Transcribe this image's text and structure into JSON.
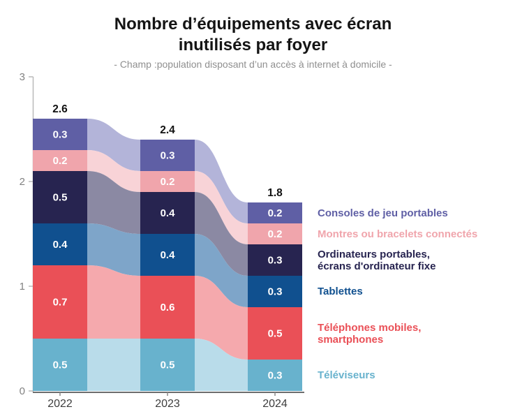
{
  "header": {
    "title_line1": "Nombre d’équipements avec écran",
    "title_line2": "inutilisés par foyer",
    "subtitle": "- Champ :population disposant d’un accès à internet à domicile -"
  },
  "chart_data": {
    "type": "area",
    "variant": "stacked-bars-with-flows",
    "title": "Nombre d’équipements avec écran inutilisés par foyer",
    "subtitle": "- Champ :population disposant d’un accès à internet à domicile -",
    "xlabel": "",
    "ylabel": "",
    "ylim": [
      0,
      3
    ],
    "yticks": [
      0,
      1,
      2,
      3
    ],
    "grid": false,
    "legend_position": "right",
    "x": [
      "2022",
      "2023",
      "2024"
    ],
    "totals": [
      2.6,
      2.4,
      1.8
    ],
    "series": [
      {
        "id": "consoles",
        "name": "Consoles de jeu portables",
        "values": [
          0.3,
          0.3,
          0.2
        ],
        "color": "#5f5fa5",
        "flow_color": "#b3b4d9"
      },
      {
        "id": "montres",
        "name": "Montres ou bracelets connectés",
        "values": [
          0.2,
          0.2,
          0.2
        ],
        "color": "#f0a5ac",
        "flow_color": "#f8d3d7"
      },
      {
        "id": "ordinateurs",
        "name": "Ordinateurs portables, écrans d'ordinateur fixe",
        "legend_lines": [
          "Ordinateurs portables,",
          "écrans d'ordinateur fixe"
        ],
        "values": [
          0.5,
          0.4,
          0.3
        ],
        "color": "#272450",
        "flow_color": "#8b89a3"
      },
      {
        "id": "tablettes",
        "name": "Tablettes",
        "values": [
          0.4,
          0.4,
          0.3
        ],
        "color": "#10508f",
        "flow_color": "#7ea5c9"
      },
      {
        "id": "telephones",
        "name": "Téléphones mobiles, smartphones",
        "legend_lines": [
          "Téléphones mobiles,",
          "smartphones"
        ],
        "values": [
          0.7,
          0.6,
          0.5
        ],
        "color": "#ea5057",
        "flow_color": "#f5a9ad"
      },
      {
        "id": "televiseurs",
        "name": "Téléviseurs",
        "values": [
          0.5,
          0.5,
          0.3
        ],
        "color": "#68b2cd",
        "flow_color": "#b9dcea"
      }
    ],
    "value_label_color": "#ffffff",
    "total_label_color": "#111111",
    "axis_colors": {
      "y_axis": "#b9b9b9",
      "x_axis": "#6e6e6e",
      "y_tick_label": "#828282",
      "x_tick_label": "#3d3d3d"
    }
  }
}
